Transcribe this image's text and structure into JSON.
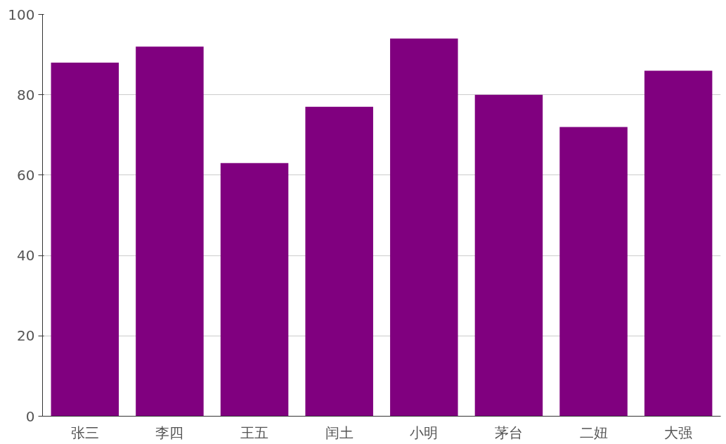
{
  "chart_data": {
    "type": "bar",
    "categories": [
      "张三",
      "李四",
      "王五",
      "闰土",
      "小明",
      "茅台",
      "二妞",
      "大强"
    ],
    "values": [
      88,
      92,
      63,
      77,
      94,
      80,
      72,
      86
    ],
    "color": "#80007f",
    "ylim": [
      0,
      100
    ],
    "yticks": [
      0,
      20,
      40,
      60,
      80,
      100
    ],
    "grid": "y"
  }
}
